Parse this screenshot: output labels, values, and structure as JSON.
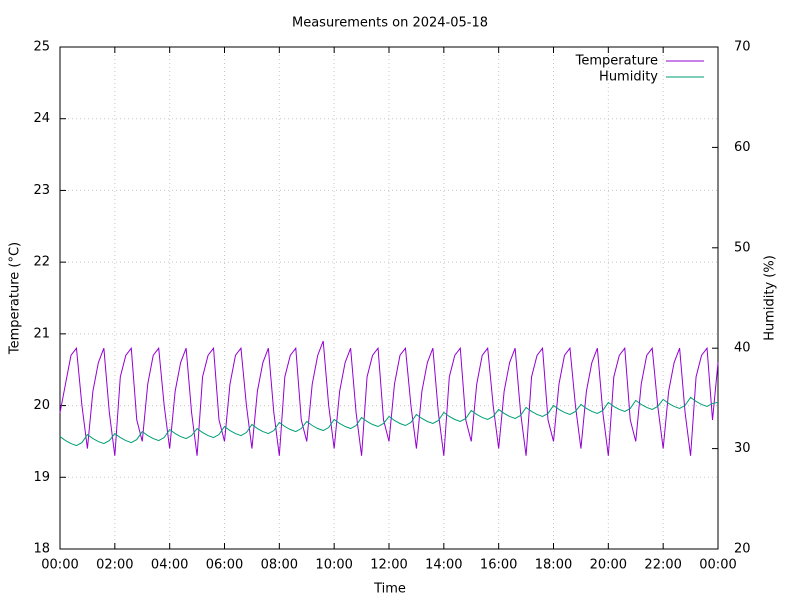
{
  "chart_data": {
    "type": "line",
    "title": "Measurements on 2024-05-18",
    "x_label": "Time",
    "y_label": "Temperature (°C)",
    "y2_label": "Humidity (%)",
    "xlim": [
      0,
      24
    ],
    "xticks": [
      {
        "value": 0,
        "label": "00:00"
      },
      {
        "value": 2,
        "label": "02:00"
      },
      {
        "value": 4,
        "label": "04:00"
      },
      {
        "value": 6,
        "label": "06:00"
      },
      {
        "value": 8,
        "label": "08:00"
      },
      {
        "value": 10,
        "label": "10:00"
      },
      {
        "value": 12,
        "label": "12:00"
      },
      {
        "value": 14,
        "label": "14:00"
      },
      {
        "value": 16,
        "label": "16:00"
      },
      {
        "value": 18,
        "label": "18:00"
      },
      {
        "value": 20,
        "label": "20:00"
      },
      {
        "value": 22,
        "label": "22:00"
      },
      {
        "value": 24,
        "label": "00:00"
      }
    ],
    "ylim": [
      18,
      25
    ],
    "yticks": [
      18,
      19,
      20,
      21,
      22,
      23,
      24,
      25
    ],
    "y2lim": [
      20,
      70
    ],
    "y2ticks": [
      20,
      30,
      40,
      50,
      60,
      70
    ],
    "grid": true,
    "legend": "top-right",
    "x": [
      0,
      0.2,
      0.4,
      0.6,
      0.8,
      1,
      1.2,
      1.4,
      1.6,
      1.8,
      2,
      2.2,
      2.4,
      2.6,
      2.8,
      3,
      3.2,
      3.4,
      3.6,
      3.8,
      4,
      4.2,
      4.4,
      4.6,
      4.8,
      5,
      5.2,
      5.4,
      5.6,
      5.8,
      6,
      6.2,
      6.4,
      6.6,
      6.8,
      7,
      7.2,
      7.4,
      7.6,
      7.8,
      8,
      8.2,
      8.4,
      8.6,
      8.8,
      9,
      9.2,
      9.4,
      9.6,
      9.8,
      10,
      10.2,
      10.4,
      10.6,
      10.8,
      11,
      11.2,
      11.4,
      11.6,
      11.8,
      12,
      12.2,
      12.4,
      12.6,
      12.8,
      13,
      13.2,
      13.4,
      13.6,
      13.8,
      14,
      14.2,
      14.4,
      14.6,
      14.8,
      15,
      15.2,
      15.4,
      15.6,
      15.8,
      16,
      16.2,
      16.4,
      16.6,
      16.8,
      17,
      17.2,
      17.4,
      17.6,
      17.8,
      18,
      18.2,
      18.4,
      18.6,
      18.8,
      19,
      19.2,
      19.4,
      19.6,
      19.8,
      20,
      20.2,
      20.4,
      20.6,
      20.8,
      21,
      21.2,
      21.4,
      21.6,
      21.8,
      22,
      22.2,
      22.4,
      22.6,
      22.8,
      23,
      23.2,
      23.4,
      23.6,
      23.8,
      24
    ],
    "series": [
      {
        "name": "Temperature",
        "color": "#9400d3",
        "values": [
          19.9,
          20.3,
          20.7,
          20.8,
          20.0,
          19.4,
          20.2,
          20.6,
          20.8,
          19.9,
          19.3,
          20.4,
          20.7,
          20.8,
          19.8,
          19.5,
          20.3,
          20.7,
          20.8,
          20.0,
          19.4,
          20.2,
          20.6,
          20.8,
          19.9,
          19.3,
          20.4,
          20.7,
          20.8,
          19.8,
          19.5,
          20.3,
          20.7,
          20.8,
          20.0,
          19.4,
          20.2,
          20.6,
          20.8,
          19.9,
          19.3,
          20.4,
          20.7,
          20.8,
          19.8,
          19.5,
          20.3,
          20.7,
          20.9,
          20.0,
          19.4,
          20.2,
          20.6,
          20.8,
          19.9,
          19.3,
          20.4,
          20.7,
          20.8,
          19.8,
          19.5,
          20.3,
          20.7,
          20.8,
          20.0,
          19.4,
          20.2,
          20.6,
          20.8,
          19.9,
          19.3,
          20.4,
          20.7,
          20.8,
          19.8,
          19.5,
          20.3,
          20.7,
          20.8,
          20.0,
          19.4,
          20.2,
          20.6,
          20.8,
          19.9,
          19.3,
          20.4,
          20.7,
          20.8,
          19.8,
          19.5,
          20.3,
          20.7,
          20.8,
          20.0,
          19.4,
          20.2,
          20.6,
          20.8,
          19.9,
          19.3,
          20.4,
          20.7,
          20.8,
          19.8,
          19.5,
          20.3,
          20.7,
          20.8,
          20.0,
          19.4,
          20.2,
          20.6,
          20.8,
          19.9,
          19.3,
          20.4,
          20.7,
          20.8,
          19.8,
          20.6
        ]
      },
      {
        "name": "Humidity",
        "color": "#009e73",
        "axis": "y2",
        "values": [
          31.2,
          30.8,
          30.5,
          30.3,
          30.6,
          31.4,
          31.0,
          30.7,
          30.5,
          30.8,
          31.5,
          31.1,
          30.8,
          30.6,
          30.9,
          31.7,
          31.3,
          31.0,
          30.8,
          31.1,
          31.9,
          31.5,
          31.2,
          31.0,
          31.3,
          32.0,
          31.6,
          31.3,
          31.1,
          31.4,
          32.2,
          31.8,
          31.5,
          31.3,
          31.6,
          32.4,
          32.0,
          31.7,
          31.5,
          31.8,
          32.6,
          32.2,
          31.9,
          31.7,
          32.0,
          32.7,
          32.3,
          32.0,
          31.8,
          32.1,
          32.9,
          32.5,
          32.2,
          32.0,
          32.3,
          33.1,
          32.7,
          32.4,
          32.2,
          32.5,
          33.2,
          32.8,
          32.5,
          32.3,
          32.6,
          33.4,
          33.0,
          32.7,
          32.5,
          32.8,
          33.6,
          33.2,
          32.9,
          32.7,
          33.0,
          33.8,
          33.4,
          33.1,
          32.9,
          33.2,
          33.9,
          33.5,
          33.2,
          33.0,
          33.3,
          34.1,
          33.7,
          33.4,
          33.2,
          33.5,
          34.3,
          33.9,
          33.6,
          33.4,
          33.7,
          34.4,
          34.0,
          33.7,
          33.5,
          33.8,
          34.6,
          34.2,
          33.9,
          33.7,
          34.0,
          34.8,
          34.4,
          34.1,
          33.9,
          34.2,
          34.9,
          34.5,
          34.2,
          34.0,
          34.3,
          35.1,
          34.7,
          34.4,
          34.2,
          34.5,
          34.6
        ]
      }
    ]
  }
}
